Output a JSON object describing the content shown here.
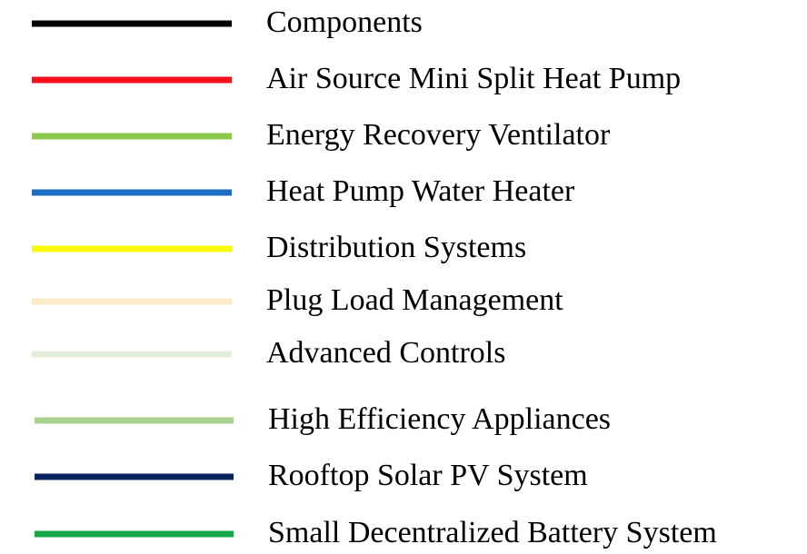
{
  "legend": {
    "items": [
      {
        "label": "Components",
        "color": "#000000"
      },
      {
        "label": "Air Source Mini Split Heat Pump",
        "color": "#f5121c"
      },
      {
        "label": "Energy Recovery Ventilator",
        "color": "#8cc84e"
      },
      {
        "label": "Heat Pump Water Heater",
        "color": "#1c6fc2"
      },
      {
        "label": "Distribution Systems",
        "color": "#fafa00"
      },
      {
        "label": "Plug Load Management",
        "color": "#fdebc8"
      },
      {
        "label": "Advanced Controls",
        "color": "#e2eeda"
      },
      {
        "label": "High Efficiency Appliances",
        "color": "#a9d18e"
      },
      {
        "label": "Rooftop Solar PV System",
        "color": "#0b2461"
      },
      {
        "label": "Small Decentralized Battery System",
        "color": "#14a84b"
      }
    ]
  }
}
